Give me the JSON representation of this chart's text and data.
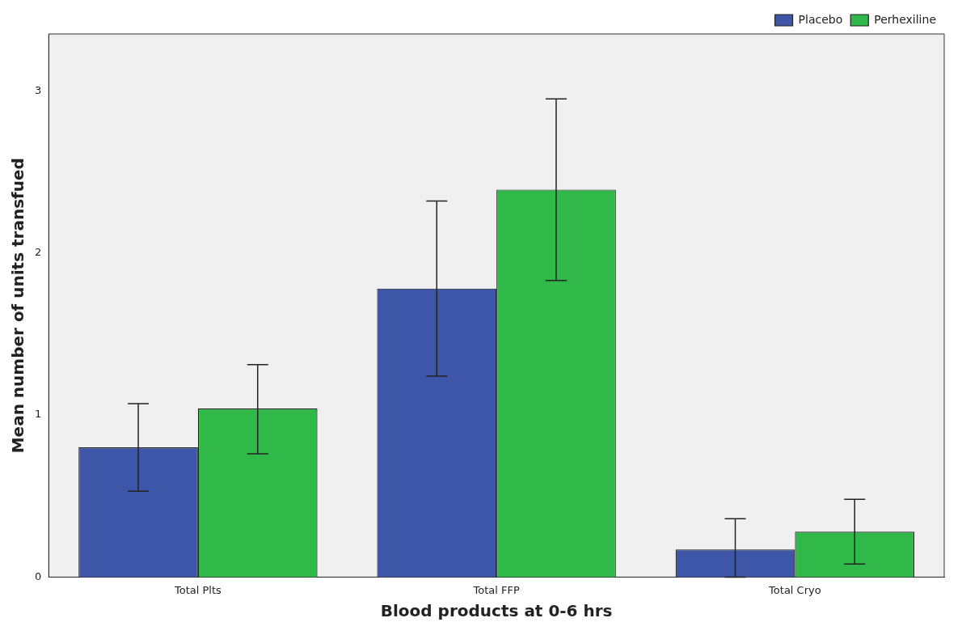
{
  "chart_data": {
    "type": "bar",
    "xlabel": "Blood products at 0-6 hrs",
    "ylabel": "Mean number of units transfued",
    "categories": [
      "Total Plts",
      "Total FFP",
      "Total Cryo"
    ],
    "series": [
      {
        "name": "Placebo",
        "color": "#3d56a8",
        "values": [
          0.8,
          1.78,
          0.17
        ],
        "errors": [
          [
            0.53,
            1.07
          ],
          [
            1.24,
            2.32
          ],
          [
            0,
            0.36
          ]
        ]
      },
      {
        "name": "Perhexiline",
        "color": "#30b848",
        "values": [
          1.04,
          2.39,
          0.28
        ],
        "errors": [
          [
            0.76,
            1.31
          ],
          [
            1.83,
            2.95
          ],
          [
            0.08,
            0.48
          ]
        ]
      }
    ],
    "ylim": [
      0,
      3.35
    ],
    "yticks": [
      0,
      1,
      2,
      3
    ],
    "grid": false,
    "legend": "top right"
  }
}
